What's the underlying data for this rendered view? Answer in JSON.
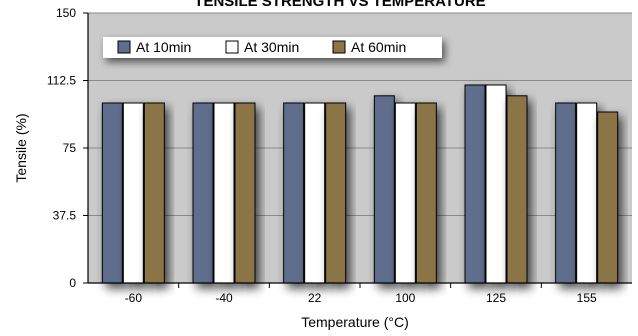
{
  "chart_data": {
    "type": "bar",
    "title": "TENSILE STRENGTH VS TEMPERATURE",
    "xlabel": "Temperature (°C)",
    "ylabel": "Tensile (%)",
    "categories": [
      "-60",
      "-40",
      "22",
      "100",
      "125",
      "155"
    ],
    "series": [
      {
        "name": "At 10min",
        "color": "#5e6e8c",
        "values": [
          100,
          100,
          100,
          104,
          110,
          100
        ]
      },
      {
        "name": "At 30min",
        "color": "#ffffff",
        "values": [
          100,
          100,
          100,
          100,
          110,
          100
        ]
      },
      {
        "name": "At 60min",
        "color": "#8b7547",
        "values": [
          100,
          100,
          100,
          100,
          104,
          95
        ]
      }
    ],
    "ylim": [
      0,
      150
    ],
    "yticks": [
      "0",
      "37.5",
      "75",
      "112.5",
      "150"
    ],
    "grid": true,
    "legend_position": "top-left",
    "plot_background": "#cacaca"
  }
}
